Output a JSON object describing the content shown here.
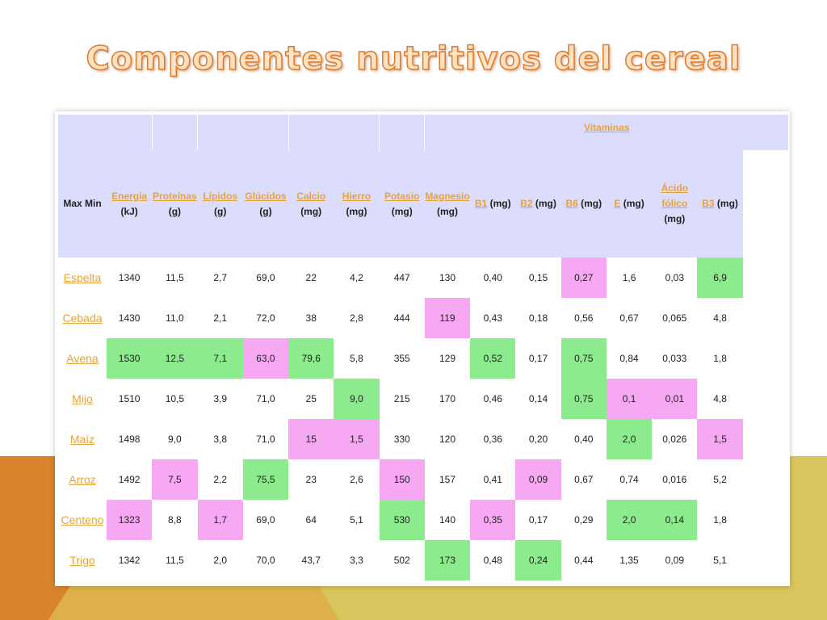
{
  "title": "Componentes nutritivos del cereal",
  "corner_label": "Max Min",
  "group_header": "Vitaminas",
  "columns": [
    {
      "name": "Energía",
      "unit": "(kJ)"
    },
    {
      "name": "Proteínas",
      "unit": "(g)"
    },
    {
      "name": "Lípidos",
      "unit": "(g)"
    },
    {
      "name": "Glúcidos",
      "unit": "(g)"
    },
    {
      "name": "Calcio",
      "unit": "(mg)"
    },
    {
      "name": "Hierro",
      "unit": "(mg)"
    },
    {
      "name": "Potasio",
      "unit": "(mg)"
    },
    {
      "name": "Magnesio",
      "unit": "(mg)"
    },
    {
      "name": "B1",
      "unit": "(mg)"
    },
    {
      "name": "B2",
      "unit": "(mg)"
    },
    {
      "name": "B6",
      "unit": "(mg)"
    },
    {
      "name": "E",
      "unit": "(mg)"
    },
    {
      "name": "Ácido fólico",
      "unit": "(mg)"
    },
    {
      "name": "B3",
      "unit": "(mg)"
    }
  ],
  "rows": [
    {
      "name": "Espelta",
      "values": [
        "1340",
        "11,5",
        "2,7",
        "69,0",
        "22",
        "4,2",
        "447",
        "130",
        "0,40",
        "0,15",
        "0,27",
        "1,6",
        "0,03",
        "6,9"
      ]
    },
    {
      "name": "Cebada",
      "values": [
        "1430",
        "11,0",
        "2,1",
        "72,0",
        "38",
        "2,8",
        "444",
        "119",
        "0,43",
        "0,18",
        "0,56",
        "0,67",
        "0,065",
        "4,8"
      ]
    },
    {
      "name": "Avena",
      "values": [
        "1530",
        "12,5",
        "7,1",
        "63,0",
        "79,6",
        "5,8",
        "355",
        "129",
        "0,52",
        "0,17",
        "0,75",
        "0,84",
        "0,033",
        "1,8"
      ]
    },
    {
      "name": "Mijo",
      "values": [
        "1510",
        "10,5",
        "3,9",
        "71,0",
        "25",
        "9,0",
        "215",
        "170",
        "0,46",
        "0,14",
        "0,75",
        "0,1",
        "0,01",
        "4,8"
      ]
    },
    {
      "name": "Maíz",
      "values": [
        "1498",
        "9,0",
        "3,8",
        "71,0",
        "15",
        "1,5",
        "330",
        "120",
        "0,36",
        "0,20",
        "0,40",
        "2,0",
        "0,026",
        "1,5"
      ]
    },
    {
      "name": "Arroz",
      "values": [
        "1492",
        "7,5",
        "2,2",
        "75,5",
        "23",
        "2,6",
        "150",
        "157",
        "0,41",
        "0,09",
        "0,67",
        "0,74",
        "0,016",
        "5,2"
      ]
    },
    {
      "name": "Centeno",
      "values": [
        "1323",
        "8,8",
        "1,7",
        "69,0",
        "64",
        "5,1",
        "530",
        "140",
        "0,35",
        "0,17",
        "0,29",
        "2,0",
        "0,14",
        "1,8"
      ]
    },
    {
      "name": "Trigo",
      "values": [
        "1342",
        "11,5",
        "2,0",
        "70,0",
        "43,7",
        "3,3",
        "502",
        "173",
        "0,48",
        "0,24",
        "0,44",
        "1,35",
        "0,09",
        "5,1"
      ]
    }
  ],
  "highlights": {
    "colors": {
      "max": "#8ceb8c",
      "min": "#f7a8f2"
    },
    "max": [
      [
        0,
        13
      ],
      [
        2,
        0
      ],
      [
        2,
        1
      ],
      [
        2,
        2
      ],
      [
        2,
        4
      ],
      [
        2,
        8
      ],
      [
        2,
        10
      ],
      [
        3,
        5
      ],
      [
        3,
        10
      ],
      [
        4,
        11
      ],
      [
        5,
        3
      ],
      [
        6,
        6
      ],
      [
        6,
        11
      ],
      [
        6,
        12
      ],
      [
        7,
        7
      ],
      [
        7,
        9
      ]
    ],
    "min": [
      [
        0,
        10
      ],
      [
        1,
        7
      ],
      [
        2,
        3
      ],
      [
        3,
        11
      ],
      [
        3,
        12
      ],
      [
        4,
        4
      ],
      [
        4,
        5
      ],
      [
        4,
        13
      ],
      [
        5,
        1
      ],
      [
        5,
        6
      ],
      [
        5,
        9
      ],
      [
        6,
        0
      ],
      [
        6,
        2
      ],
      [
        6,
        8
      ]
    ]
  },
  "theme": {
    "title_fill": "#fde3c4",
    "title_stroke": "#e0782a",
    "header_bg": "#dcdcfc",
    "link_color": "#e8a23a"
  }
}
